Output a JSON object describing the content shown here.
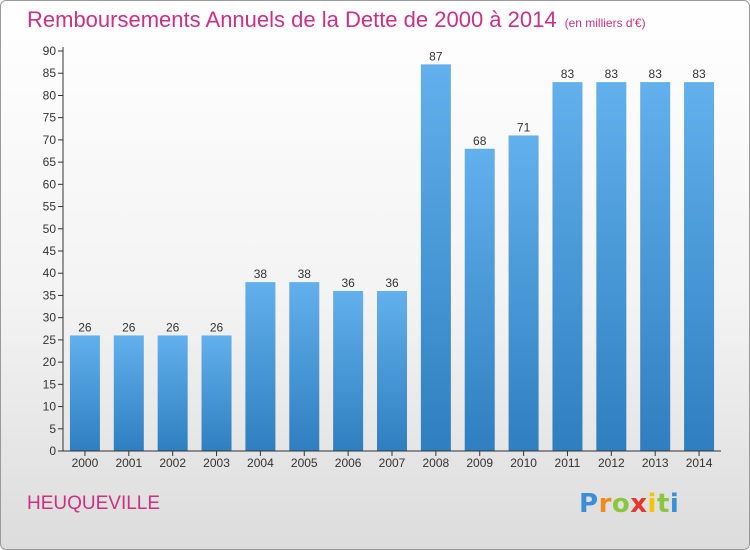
{
  "chart_data": {
    "type": "bar",
    "title": "Remboursements Annuels de la Dette de 2000 à 2014",
    "subtitle": "(en milliers d'€)",
    "categories": [
      "2000",
      "2001",
      "2002",
      "2003",
      "2004",
      "2005",
      "2006",
      "2007",
      "2008",
      "2009",
      "2010",
      "2011",
      "2012",
      "2013",
      "2014"
    ],
    "values": [
      26,
      26,
      26,
      26,
      38,
      38,
      36,
      36,
      87,
      68,
      71,
      83,
      83,
      83,
      83
    ],
    "ylim": [
      0,
      90
    ],
    "yticks": [
      0,
      5,
      10,
      15,
      20,
      25,
      30,
      35,
      40,
      45,
      50,
      55,
      60,
      65,
      70,
      75,
      80,
      85,
      90
    ],
    "grid": false,
    "legend": "none",
    "colors": {
      "bar_light": "#62b0ec",
      "bar_dark": "#2f7fc0",
      "title": "#cc2f84",
      "axis": "#333333"
    }
  },
  "place": "HEUQUEVILLE",
  "logo": {
    "letters": [
      "P",
      "r",
      "o",
      "x",
      "i",
      "t",
      "i"
    ],
    "colors": [
      "#3a8fd6",
      "#f08a1c",
      "#8cc63f",
      "#e8362c",
      "#f5c400",
      "#8cc63f",
      "#3a8fd6"
    ]
  }
}
